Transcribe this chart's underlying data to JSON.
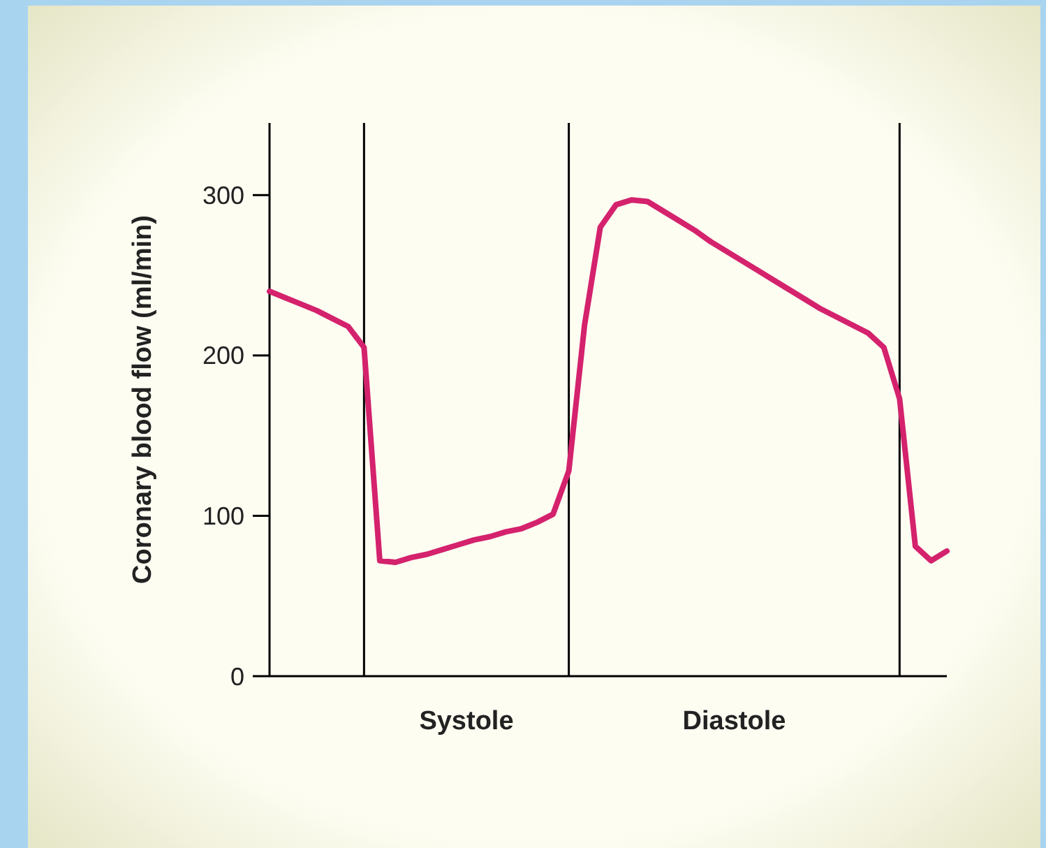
{
  "chart_data": {
    "type": "line",
    "ylabel": "Coronary blood flow (ml/min)",
    "categories": [
      null,
      null,
      null,
      null,
      null,
      null,
      null,
      null,
      null,
      null,
      null,
      null,
      null,
      null,
      null,
      null,
      null,
      null,
      null,
      null,
      null,
      null,
      null,
      null,
      null,
      null,
      null,
      null,
      null,
      null,
      null,
      null,
      null,
      null,
      null,
      null,
      null,
      null,
      null,
      null,
      null,
      null,
      null,
      null
    ],
    "ylim": [
      0,
      345
    ],
    "yticks": [
      0,
      100,
      200,
      300
    ],
    "tick_labels": "y",
    "grid": "x",
    "marker": "none",
    "line_style": "solid",
    "series": [
      {
        "color": "#d4226d",
        "values": [
          240,
          236,
          232,
          228,
          223,
          218,
          205,
          72,
          71,
          74,
          76,
          79,
          82,
          85,
          87,
          90,
          92,
          96,
          101,
          128,
          219,
          280,
          294,
          297,
          296,
          290,
          284,
          278,
          271,
          265,
          259,
          253,
          247,
          241,
          235,
          229,
          224,
          219,
          214,
          205,
          173,
          81,
          72,
          78
        ]
      }
    ],
    "annotations": [
      "Systole",
      "Diastole"
    ]
  }
}
